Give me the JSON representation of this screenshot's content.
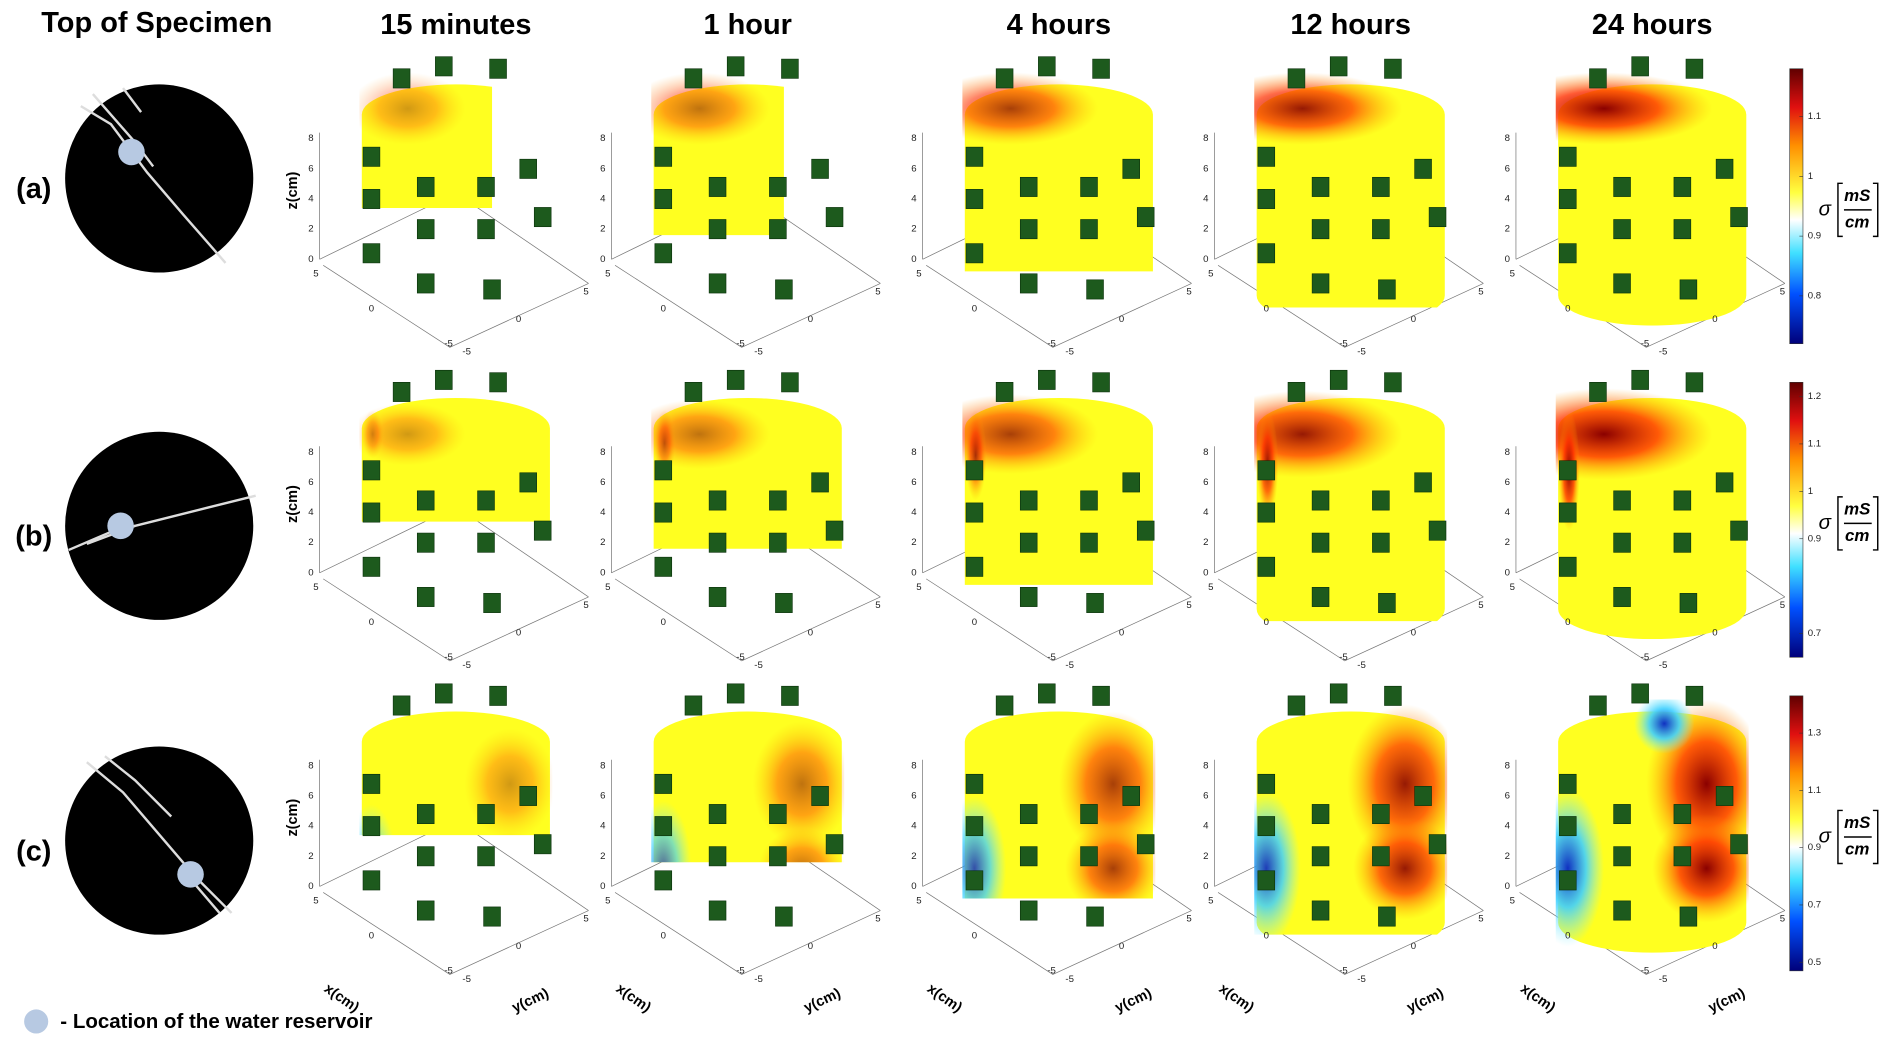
{
  "header": {
    "specimen_title": "Top of Specimen",
    "time_labels": [
      "15 minutes",
      "1 hour",
      "4 hours",
      "12 hours",
      "24 hours"
    ]
  },
  "rows": [
    {
      "label": "(a)",
      "colorbar": {
        "ticks": [
          0.8,
          0.9,
          1,
          1.1
        ],
        "range": [
          0.72,
          1.18
        ]
      }
    },
    {
      "label": "(b)",
      "colorbar": {
        "ticks": [
          0.7,
          0.9,
          1,
          1.1,
          1.2
        ],
        "range": [
          0.65,
          1.23
        ]
      }
    },
    {
      "label": "(c)",
      "colorbar": {
        "ticks": [
          0.5,
          0.7,
          0.9,
          1.1,
          1.3
        ],
        "range": [
          0.47,
          1.43
        ]
      }
    }
  ],
  "axes": {
    "z_label": "z(cm)",
    "x_label": "x(cm)",
    "y_label": "y(cm)",
    "z_ticks": [
      0,
      2,
      4,
      6,
      8
    ],
    "x_ticks": [
      5,
      0,
      -5
    ],
    "y_ticks": [
      -5,
      0,
      5
    ]
  },
  "colorbar_label": {
    "symbol": "σ",
    "numerator": "mS",
    "denominator": "cm"
  },
  "legend": "- Location of the water reservoir"
}
